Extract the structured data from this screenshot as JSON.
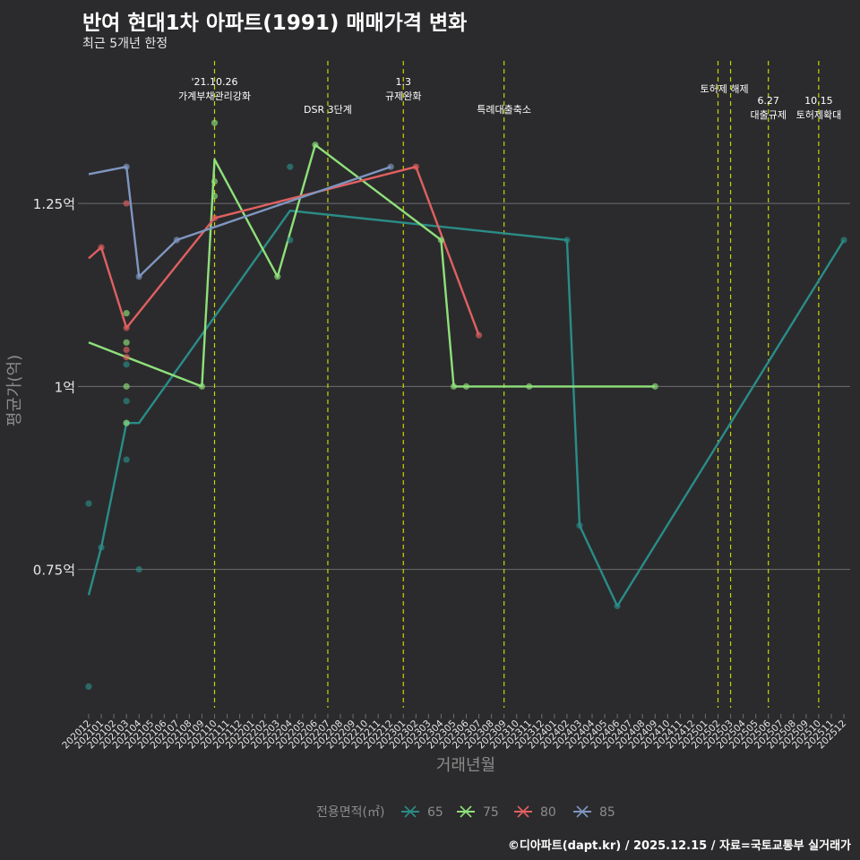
{
  "title": "반여 현대1차 아파트(1991) 매매가격 변화",
  "subtitle": "최근 5개년 한정",
  "caption": "©디아파트(dapt.kr) / 2025.12.15 / 자료=국토교통부 실거래가",
  "colors": {
    "background": "#2b2b2d",
    "grid": "#6e6e70",
    "event_line": "#c8d400",
    "s65": "#2a8c87",
    "s75": "#8fe07a",
    "s80": "#e06060",
    "s85": "#7f96c0"
  },
  "chart_data": {
    "type": "line",
    "xlabel": "거래년월",
    "ylabel": "평균가(억)",
    "ylim": [
      0.555,
      1.452
    ],
    "x_categories": [
      "202012",
      "202101",
      "202102",
      "202103",
      "202104",
      "202105",
      "202106",
      "202107",
      "202108",
      "202109",
      "202110",
      "202111",
      "202112",
      "202201",
      "202202",
      "202203",
      "202204",
      "202205",
      "202206",
      "202207",
      "202208",
      "202209",
      "202210",
      "202211",
      "202212",
      "202301",
      "202302",
      "202303",
      "202304",
      "202305",
      "202306",
      "202307",
      "202308",
      "202309",
      "202310",
      "202311",
      "202312",
      "202401",
      "202402",
      "202403",
      "202404",
      "202405",
      "202406",
      "202407",
      "202408",
      "202409",
      "202410",
      "202411",
      "202412",
      "202501",
      "202502",
      "202503",
      "202504",
      "202505",
      "202506",
      "202507",
      "202508",
      "202509",
      "202510",
      "202511",
      "202512"
    ],
    "y_ticks": [
      {
        "value": 0.75,
        "label": "0.75억"
      },
      {
        "value": 1.0,
        "label": "1억"
      },
      {
        "value": 1.25,
        "label": "1.25억"
      }
    ],
    "legend_title": "전용면적(㎡)",
    "legend_position": "bottom",
    "series": [
      {
        "name": "65",
        "color_key": "s65",
        "line": [
          [
            "202012",
            0.715
          ],
          [
            "202101",
            0.78
          ],
          [
            "202103",
            0.95
          ],
          [
            "202104",
            0.95
          ],
          [
            "202204",
            1.24
          ],
          [
            "202402",
            1.2
          ],
          [
            "202403",
            0.81
          ],
          [
            "202406",
            0.7
          ],
          [
            "202512",
            1.2
          ]
        ],
        "points": [
          [
            "202012",
            0.84
          ],
          [
            "202012",
            0.59
          ],
          [
            "202101",
            0.78
          ],
          [
            "202103",
            0.95
          ],
          [
            "202103",
            0.9
          ],
          [
            "202103",
            0.98
          ],
          [
            "202103",
            1.03
          ],
          [
            "202104",
            0.75
          ],
          [
            "202204",
            1.3
          ],
          [
            "202204",
            1.2
          ],
          [
            "202402",
            1.2
          ],
          [
            "202403",
            0.81
          ],
          [
            "202406",
            0.7
          ],
          [
            "202512",
            1.2
          ]
        ]
      },
      {
        "name": "75",
        "color_key": "s75",
        "line": [
          [
            "202012",
            1.06
          ],
          [
            "202109",
            1.0
          ],
          [
            "202110",
            1.31
          ],
          [
            "202203",
            1.15
          ],
          [
            "202206",
            1.33
          ],
          [
            "202304",
            1.2
          ],
          [
            "202305",
            1.0
          ],
          [
            "202409",
            1.0
          ]
        ],
        "points": [
          [
            "202103",
            1.1
          ],
          [
            "202103",
            1.06
          ],
          [
            "202103",
            1.0
          ],
          [
            "202103",
            0.95
          ],
          [
            "202109",
            1.0
          ],
          [
            "202110",
            1.36
          ],
          [
            "202110",
            1.26
          ],
          [
            "202110",
            1.28
          ],
          [
            "202203",
            1.15
          ],
          [
            "202206",
            1.33
          ],
          [
            "202304",
            1.2
          ],
          [
            "202305",
            1.0
          ],
          [
            "202306",
            1.0
          ],
          [
            "202311",
            1.0
          ],
          [
            "202409",
            1.0
          ]
        ]
      },
      {
        "name": "80",
        "color_key": "s80",
        "line": [
          [
            "202012",
            1.175
          ],
          [
            "202101",
            1.19
          ],
          [
            "202103",
            1.08
          ],
          [
            "202110",
            1.23
          ],
          [
            "202302",
            1.3
          ],
          [
            "202307",
            1.07
          ]
        ],
        "points": [
          [
            "202101",
            1.19
          ],
          [
            "202103",
            1.25
          ],
          [
            "202103",
            1.05
          ],
          [
            "202103",
            1.04
          ],
          [
            "202103",
            1.08
          ],
          [
            "202110",
            1.23
          ],
          [
            "202302",
            1.3
          ],
          [
            "202307",
            1.07
          ]
        ]
      },
      {
        "name": "85",
        "color_key": "s85",
        "line": [
          [
            "202012",
            1.29
          ],
          [
            "202103",
            1.3
          ],
          [
            "202104",
            1.15
          ],
          [
            "202107",
            1.2
          ],
          [
            "202212",
            1.3
          ]
        ],
        "points": [
          [
            "202103",
            1.3
          ],
          [
            "202104",
            1.15
          ],
          [
            "202107",
            1.2
          ],
          [
            "202212",
            1.3
          ]
        ]
      }
    ],
    "events": [
      {
        "x": "202110",
        "lines": [
          "'21.10.26",
          "가계부채관리강화"
        ],
        "row": 1
      },
      {
        "x": "202207",
        "lines": [
          "DSR 3단계"
        ],
        "row": 2
      },
      {
        "x": "202301",
        "lines": [
          "1.3",
          "규제완화"
        ],
        "row": 1
      },
      {
        "x": "202309",
        "lines": [
          "특례대출축소"
        ],
        "row": 2
      },
      {
        "x": "202502",
        "lines": [],
        "row": 0
      },
      {
        "x": "202503",
        "lines": [
          "토허제 해제"
        ],
        "row": 1,
        "label_between": "202502"
      },
      {
        "x": "202506",
        "lines": [
          "6.27",
          "대출규제"
        ],
        "row": 2
      },
      {
        "x": "202510",
        "lines": [
          "10.15",
          "토허제확대"
        ],
        "row": 2
      }
    ]
  }
}
